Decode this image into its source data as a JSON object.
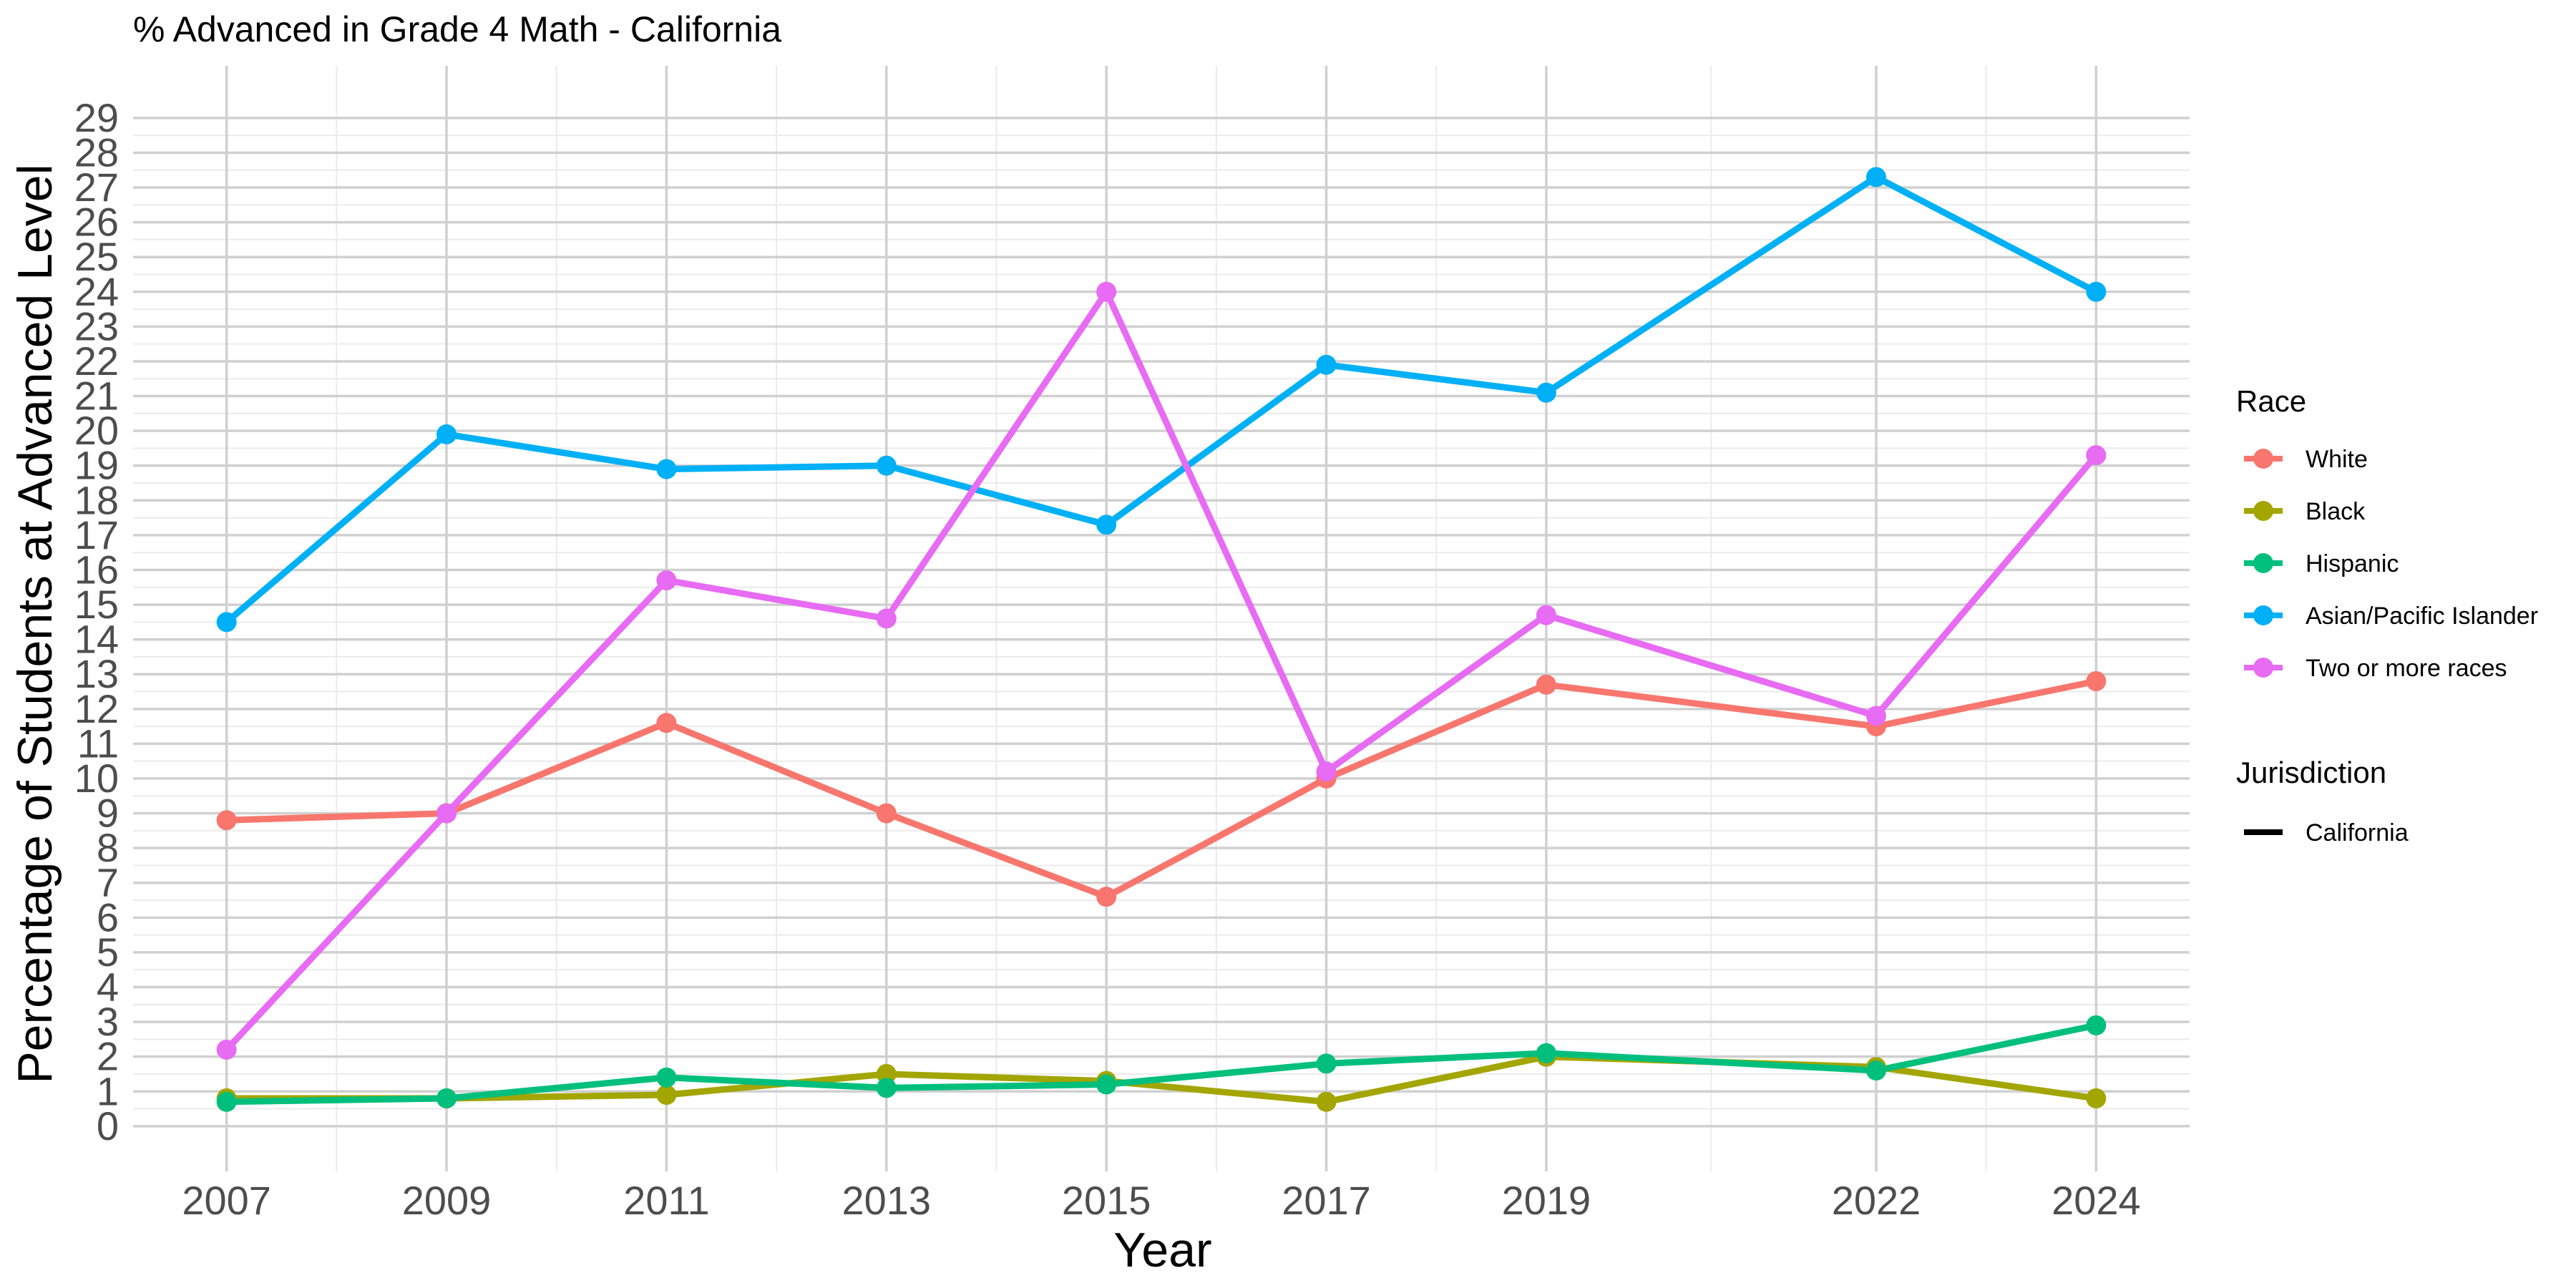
{
  "chart_data": {
    "type": "line",
    "title": "% Advanced in Grade 4 Math - California",
    "xlabel": "Year",
    "ylabel": "Percentage of Students at Advanced Level",
    "x": [
      2007,
      2009,
      2011,
      2013,
      2015,
      2017,
      2019,
      2022,
      2024
    ],
    "x_tick_labels": [
      "2007",
      "2009",
      "2011",
      "2013",
      "2015",
      "2017",
      "2019",
      "2022",
      "2024"
    ],
    "xlim": [
      2006.15,
      2024.85
    ],
    "ylim": [
      -1.3,
      30.5
    ],
    "y_ticks": [
      0,
      1,
      2,
      3,
      4,
      5,
      6,
      7,
      8,
      9,
      10,
      11,
      12,
      13,
      14,
      15,
      16,
      17,
      18,
      19,
      20,
      21,
      22,
      23,
      24,
      25,
      26,
      27,
      28,
      29
    ],
    "grid": true,
    "legend_position": "right",
    "legend": {
      "race_title": "Race",
      "jurisdiction_title": "Jurisdiction",
      "jurisdiction_items": [
        {
          "name": "California",
          "color": "#000000"
        }
      ]
    },
    "series": [
      {
        "name": "White",
        "color": "#F8766D",
        "values": [
          8.8,
          9.0,
          11.6,
          9.0,
          6.6,
          10.0,
          12.7,
          11.5,
          12.8
        ]
      },
      {
        "name": "Black",
        "color": "#A3A500",
        "values": [
          0.8,
          0.8,
          0.9,
          1.5,
          1.3,
          0.7,
          2.0,
          1.7,
          0.8
        ]
      },
      {
        "name": "Hispanic",
        "color": "#00BF7D",
        "values": [
          0.7,
          0.8,
          1.4,
          1.1,
          1.2,
          1.8,
          2.1,
          1.6,
          2.9
        ]
      },
      {
        "name": "Asian/Pacific Islander",
        "color": "#00B0F6",
        "values": [
          14.5,
          19.9,
          18.9,
          19.0,
          17.3,
          21.9,
          21.1,
          27.3,
          24.0
        ]
      },
      {
        "name": "Two or more races",
        "color": "#E76BF3",
        "values": [
          2.2,
          9.0,
          15.7,
          14.6,
          24.0,
          10.2,
          14.7,
          11.8,
          19.3
        ]
      }
    ]
  }
}
